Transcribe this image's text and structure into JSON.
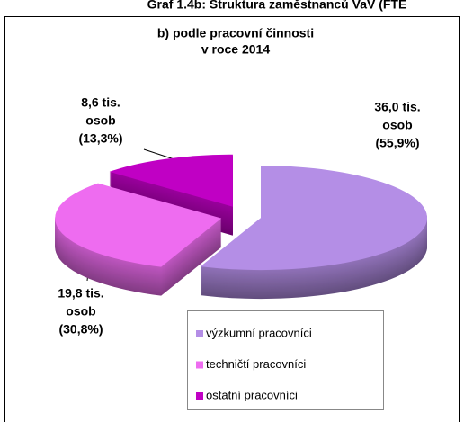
{
  "header": "Graf 1.4b: Struktura zaměstnanců VaV (FTE",
  "chart_data": {
    "type": "pie",
    "title": [
      "b) podle pracovní činnosti",
      "v roce 2014"
    ],
    "categories": [
      "výzkumní pracovníci",
      "techničtí pracovníci",
      "ostatní pracovníci"
    ],
    "values": [
      55.9,
      30.8,
      13.3
    ],
    "value_labels": [
      [
        "36,0 tis.",
        "osob",
        "(55,9%)"
      ],
      [
        "19,8 tis.",
        "osob",
        "(30,8%)"
      ],
      [
        "8,6 tis.",
        "osob",
        "(13,3%)"
      ]
    ],
    "colors": [
      "#b48ee6",
      "#ee6cf0",
      "#c000c4"
    ],
    "legend": "bottom"
  }
}
